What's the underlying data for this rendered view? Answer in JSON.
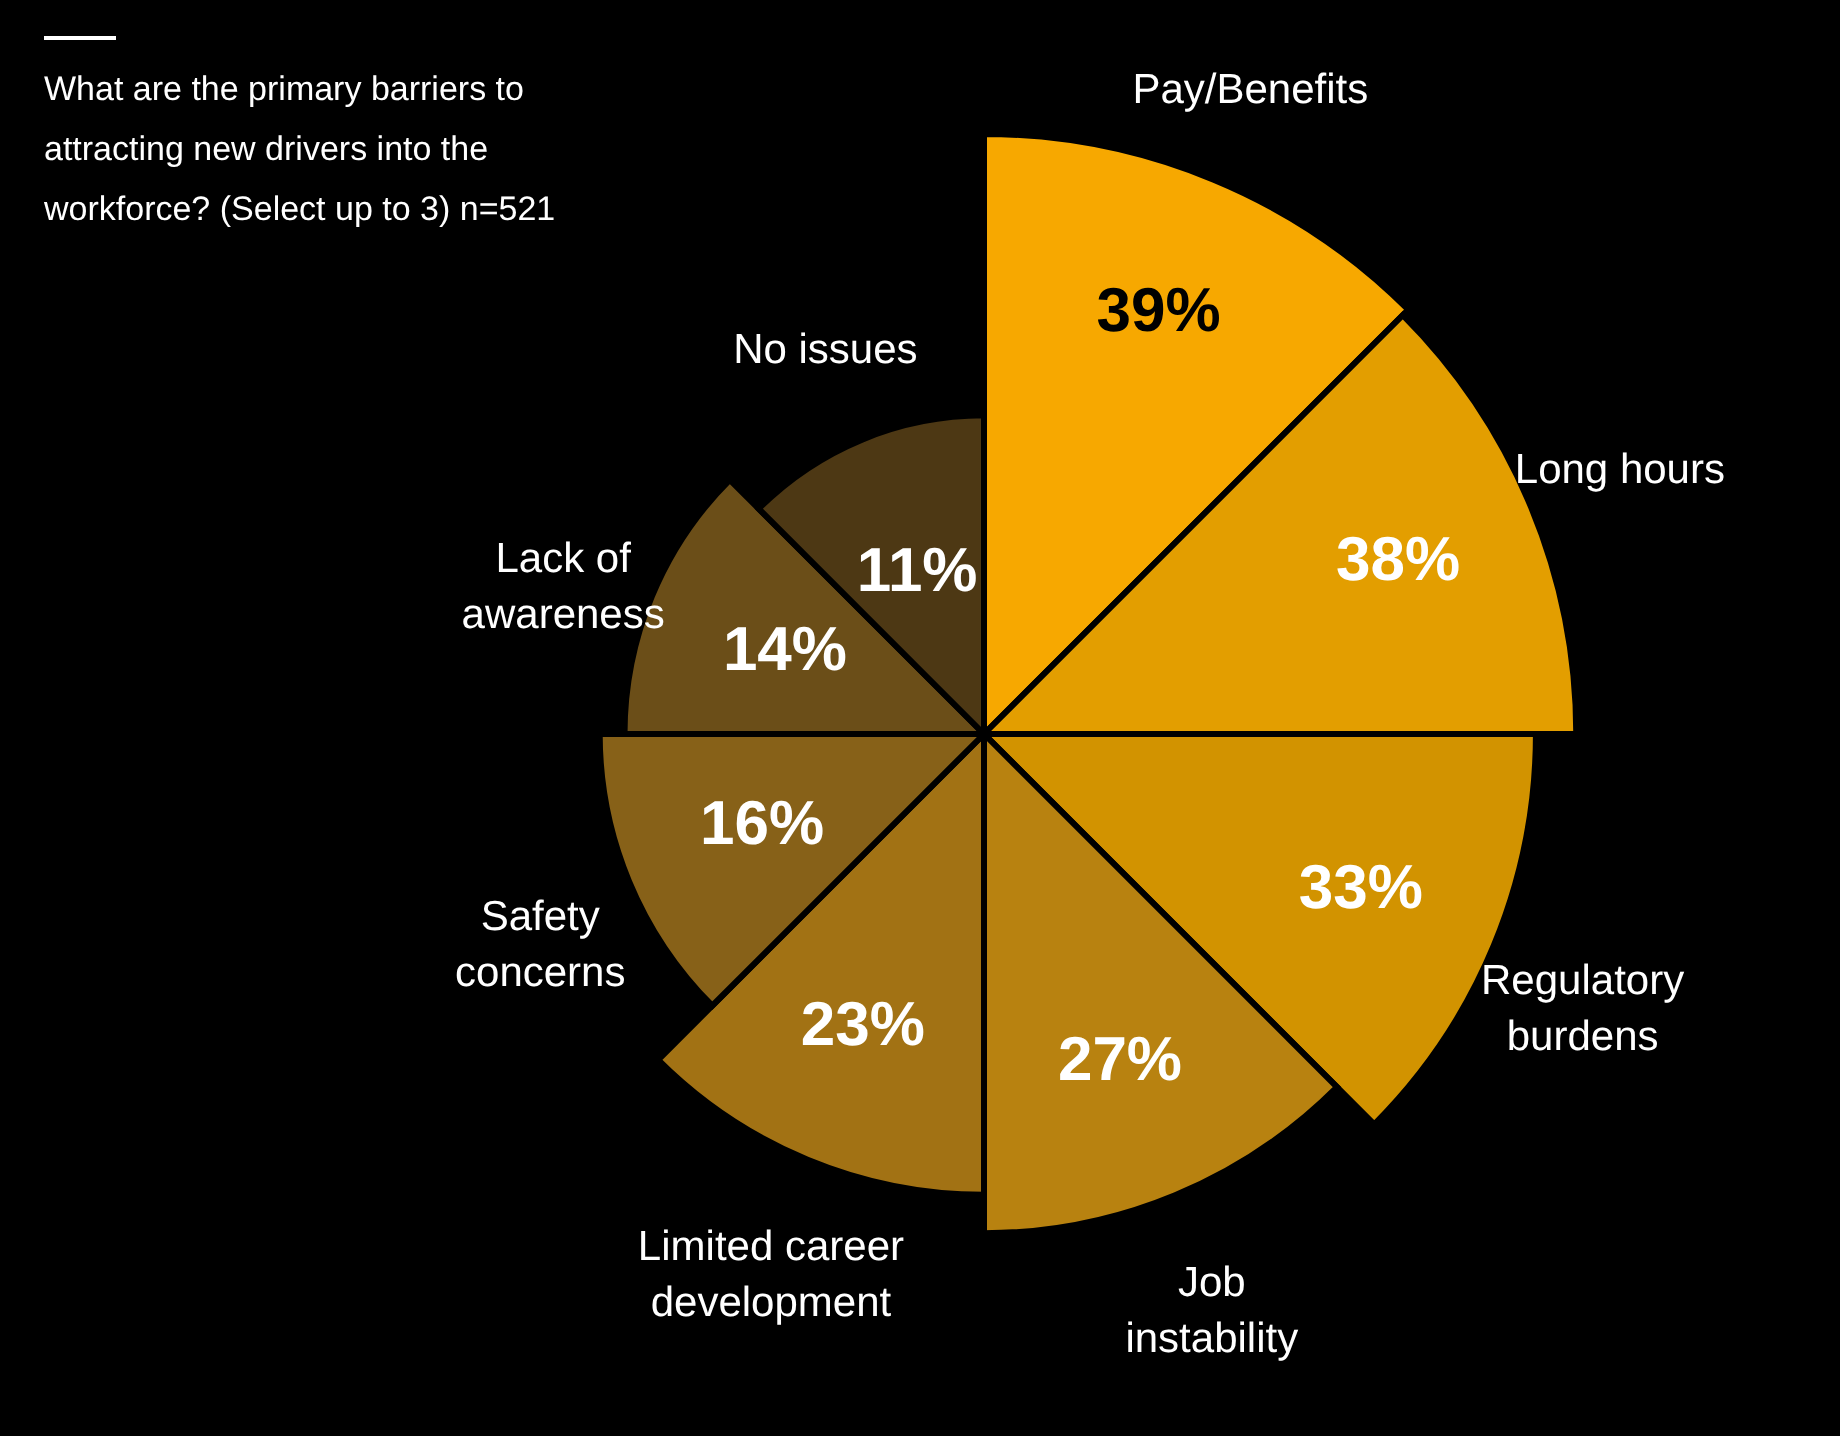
{
  "chart_data": {
    "type": "other",
    "title": "What are the primary barriers to attracting new drivers into the workforce? (Select up to 3) n=521",
    "categories": [
      "Pay/Benefits",
      "Long hours",
      "Regulatory burdens",
      "Job instability",
      "Limited career development",
      "Safety concerns",
      "Lack of awareness",
      "No issues"
    ],
    "values": [
      39,
      38,
      33,
      27,
      23,
      16,
      14,
      11
    ],
    "value_labels": [
      "39%",
      "38%",
      "33%",
      "27%",
      "23%",
      "16%",
      "14%",
      "11%"
    ],
    "colors": [
      "#f7a800",
      "#e39e00",
      "#d29300",
      "#b88210",
      "#a27214",
      "#876118",
      "#6b4e18",
      "#4d3814"
    ]
  }
}
